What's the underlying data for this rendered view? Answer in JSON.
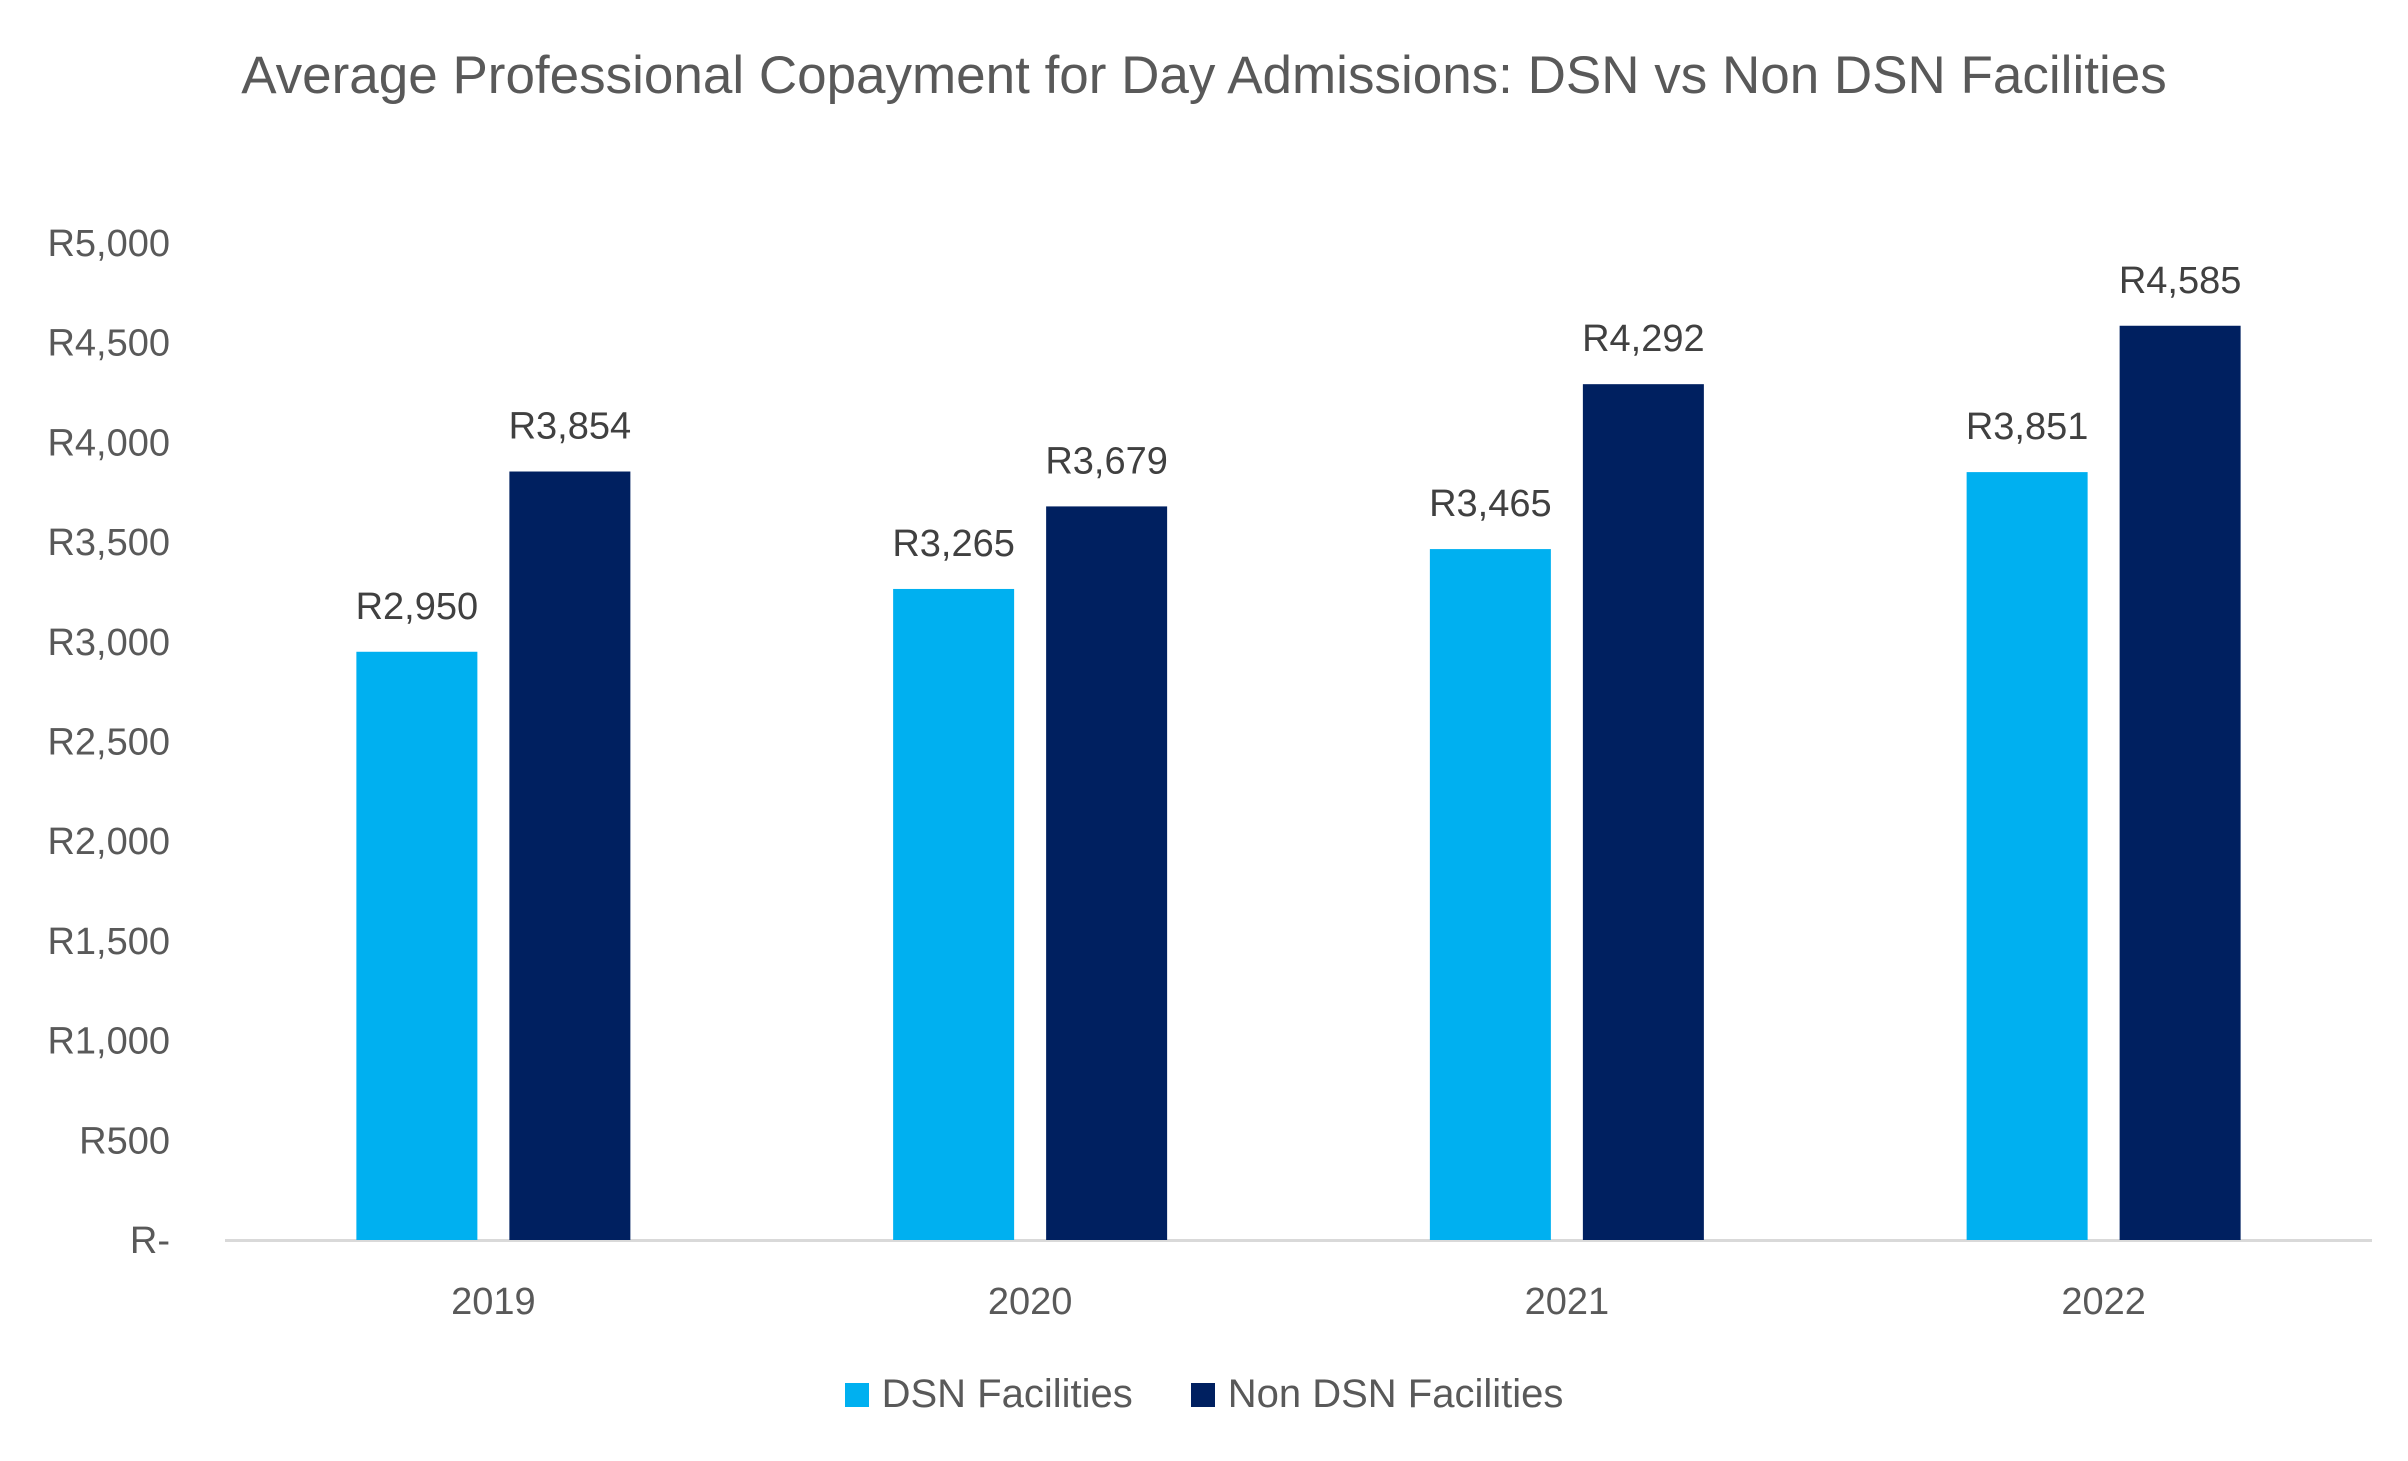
{
  "chart_data": {
    "type": "bar",
    "title": "Average Professional Copayment for Day Admissions: DSN vs Non DSN Facilities",
    "categories": [
      "2019",
      "2020",
      "2021",
      "2022"
    ],
    "series": [
      {
        "name": "DSN Facilities",
        "color": "#00B0F0",
        "values": [
          2950,
          3265,
          3465,
          3851
        ],
        "labels": [
          "R2,950",
          "R3,265",
          "R3,465",
          "R3,851"
        ]
      },
      {
        "name": "Non DSN Facilities",
        "color": "#002060",
        "values": [
          3854,
          3679,
          4292,
          4585
        ],
        "labels": [
          "R3,854",
          "R3,679",
          "R4,292",
          "R4,585"
        ]
      }
    ],
    "ylim": [
      0,
      5000
    ],
    "yticks": [
      0,
      500,
      1000,
      1500,
      2000,
      2500,
      3000,
      3500,
      4000,
      4500,
      5000
    ],
    "ytick_labels": [
      "R-",
      "R500",
      "R1,000",
      "R1,500",
      "R2,000",
      "R2,500",
      "R3,000",
      "R3,500",
      "R4,000",
      "R4,500",
      "R5,000"
    ],
    "grid": false,
    "legend_position": "bottom",
    "axis_color": "#D9D9D9"
  }
}
